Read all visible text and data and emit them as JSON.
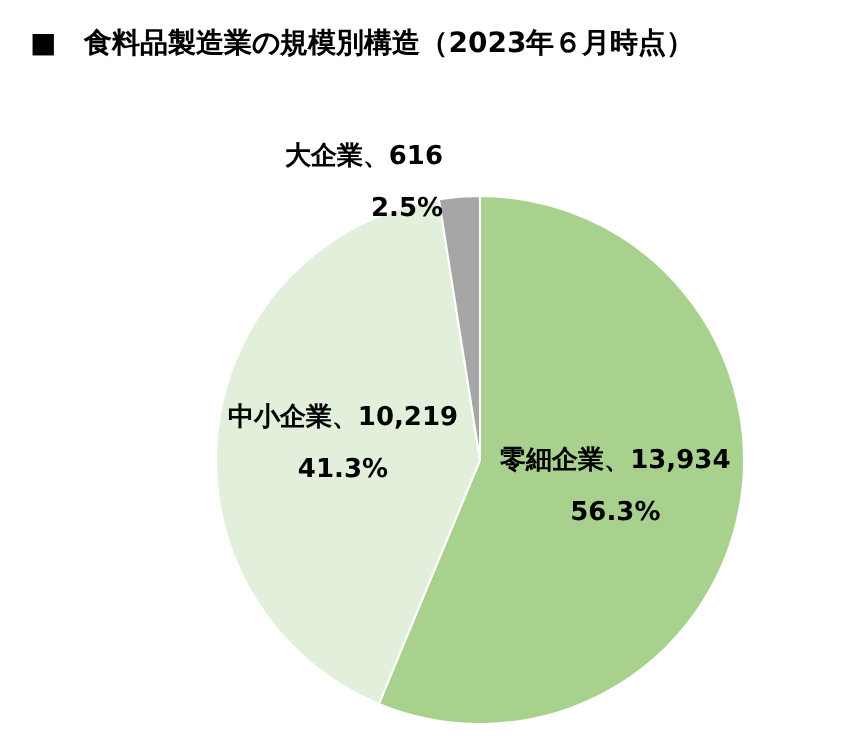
{
  "chart_data": {
    "type": "pie",
    "title": "■　食料品製造業の規模別構造（2023年６月時点）",
    "categories": [
      "零細企業",
      "中小企業",
      "大企業"
    ],
    "values": [
      13934,
      10219,
      616
    ],
    "colors": [
      "#a9d18e",
      "#e2efda",
      "#a6a6a6"
    ],
    "value_labels": [
      "13,934\n56.3%",
      "10,219\n41.3%",
      "616\n2.5%"
    ]
  }
}
